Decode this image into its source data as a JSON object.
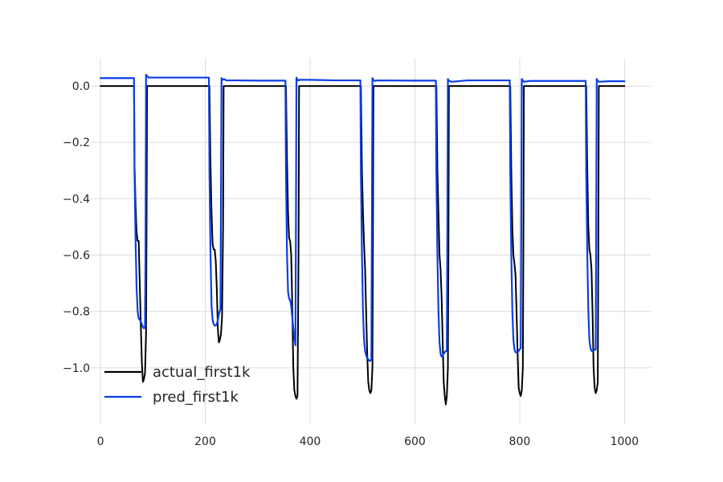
{
  "chart_data": {
    "type": "line",
    "title": "",
    "xlabel": "",
    "ylabel": "",
    "xlim": [
      -20,
      1050
    ],
    "ylim": [
      -1.2,
      0.1
    ],
    "grid": true,
    "legend_position": "lower-left",
    "x_ticks": [
      {
        "value": 0,
        "label": "0"
      },
      {
        "value": 200,
        "label": "200"
      },
      {
        "value": 400,
        "label": "400"
      },
      {
        "value": 600,
        "label": "600"
      },
      {
        "value": 800,
        "label": "800"
      },
      {
        "value": 1000,
        "label": "1000"
      }
    ],
    "y_ticks": [
      {
        "value": 0.0,
        "label": "0.0"
      },
      {
        "value": -0.2,
        "label": "−0.2"
      },
      {
        "value": -0.4,
        "label": "−0.4"
      },
      {
        "value": -0.6,
        "label": "−0.6"
      },
      {
        "value": -0.8,
        "label": "−0.8"
      },
      {
        "value": -1.0,
        "label": "−1.0"
      }
    ],
    "series": [
      {
        "name": "actual_first1k",
        "color": "#000000",
        "points": [
          [
            0,
            0.0
          ],
          [
            64,
            0.0
          ],
          [
            65,
            -0.28
          ],
          [
            67,
            -0.42
          ],
          [
            69,
            -0.52
          ],
          [
            71,
            -0.55
          ],
          [
            73,
            -0.55
          ],
          [
            75,
            -0.7
          ],
          [
            77,
            -0.85
          ],
          [
            79,
            -0.98
          ],
          [
            81,
            -1.05
          ],
          [
            83,
            -1.04
          ],
          [
            85,
            -1.02
          ],
          [
            87,
            -0.88
          ],
          [
            88,
            -0.5
          ],
          [
            89,
            0.0
          ],
          [
            208,
            0.0
          ],
          [
            210,
            -0.28
          ],
          [
            212,
            -0.45
          ],
          [
            214,
            -0.56
          ],
          [
            216,
            -0.58
          ],
          [
            218,
            -0.58
          ],
          [
            220,
            -0.62
          ],
          [
            222,
            -0.72
          ],
          [
            224,
            -0.86
          ],
          [
            226,
            -0.91
          ],
          [
            228,
            -0.9
          ],
          [
            230,
            -0.88
          ],
          [
            232,
            -0.82
          ],
          [
            234,
            -0.5
          ],
          [
            235,
            0.0
          ],
          [
            354,
            0.0
          ],
          [
            356,
            -0.27
          ],
          [
            358,
            -0.45
          ],
          [
            360,
            -0.54
          ],
          [
            362,
            -0.55
          ],
          [
            364,
            -0.6
          ],
          [
            366,
            -0.78
          ],
          [
            368,
            -1.0
          ],
          [
            370,
            -1.08
          ],
          [
            372,
            -1.1
          ],
          [
            374,
            -1.11
          ],
          [
            376,
            -1.1
          ],
          [
            378,
            -0.6
          ],
          [
            379,
            0.0
          ],
          [
            497,
            0.0
          ],
          [
            499,
            -0.3
          ],
          [
            501,
            -0.45
          ],
          [
            503,
            -0.56
          ],
          [
            505,
            -0.65
          ],
          [
            507,
            -0.8
          ],
          [
            509,
            -0.95
          ],
          [
            511,
            -1.05
          ],
          [
            513,
            -1.08
          ],
          [
            515,
            -1.09
          ],
          [
            517,
            -1.08
          ],
          [
            519,
            -1.0
          ],
          [
            520,
            -0.5
          ],
          [
            521,
            0.0
          ],
          [
            641,
            0.0
          ],
          [
            643,
            -0.3
          ],
          [
            645,
            -0.45
          ],
          [
            647,
            -0.6
          ],
          [
            649,
            -0.65
          ],
          [
            651,
            -0.75
          ],
          [
            653,
            -0.9
          ],
          [
            655,
            -1.05
          ],
          [
            657,
            -1.1
          ],
          [
            659,
            -1.13
          ],
          [
            661,
            -1.1
          ],
          [
            663,
            -1.0
          ],
          [
            664,
            -0.6
          ],
          [
            665,
            0.0
          ],
          [
            782,
            0.0
          ],
          [
            784,
            -0.3
          ],
          [
            786,
            -0.5
          ],
          [
            788,
            -0.6
          ],
          [
            790,
            -0.63
          ],
          [
            792,
            -0.67
          ],
          [
            794,
            -0.8
          ],
          [
            796,
            -0.95
          ],
          [
            798,
            -1.07
          ],
          [
            800,
            -1.09
          ],
          [
            802,
            -1.1
          ],
          [
            804,
            -1.08
          ],
          [
            806,
            -1.0
          ],
          [
            807,
            -0.6
          ],
          [
            808,
            0.0
          ],
          [
            927,
            0.0
          ],
          [
            929,
            -0.3
          ],
          [
            931,
            -0.5
          ],
          [
            933,
            -0.58
          ],
          [
            935,
            -0.6
          ],
          [
            937,
            -0.65
          ],
          [
            939,
            -0.8
          ],
          [
            941,
            -1.0
          ],
          [
            943,
            -1.07
          ],
          [
            945,
            -1.09
          ],
          [
            947,
            -1.08
          ],
          [
            949,
            -1.05
          ],
          [
            950,
            -0.6
          ],
          [
            951,
            0.0
          ],
          [
            1000,
            0.0
          ]
        ]
      },
      {
        "name": "pred_first1k",
        "color": "#0A3FE8",
        "points": [
          [
            0,
            0.028
          ],
          [
            64,
            0.028
          ],
          [
            65,
            -0.3
          ],
          [
            67,
            -0.55
          ],
          [
            69,
            -0.72
          ],
          [
            71,
            -0.8
          ],
          [
            73,
            -0.825
          ],
          [
            75,
            -0.83
          ],
          [
            77,
            -0.835
          ],
          [
            79,
            -0.845
          ],
          [
            81,
            -0.855
          ],
          [
            83,
            -0.86
          ],
          [
            85,
            -0.855
          ],
          [
            86,
            -0.6
          ],
          [
            87,
            0.04
          ],
          [
            89,
            0.035
          ],
          [
            92,
            0.03
          ],
          [
            100,
            0.03
          ],
          [
            150,
            0.03
          ],
          [
            207,
            0.03
          ],
          [
            208,
            -0.3
          ],
          [
            210,
            -0.6
          ],
          [
            212,
            -0.78
          ],
          [
            214,
            -0.83
          ],
          [
            216,
            -0.845
          ],
          [
            218,
            -0.85
          ],
          [
            220,
            -0.85
          ],
          [
            222,
            -0.845
          ],
          [
            224,
            -0.83
          ],
          [
            226,
            -0.81
          ],
          [
            229,
            -0.79
          ],
          [
            230,
            -0.4
          ],
          [
            231,
            0.028
          ],
          [
            233,
            0.022
          ],
          [
            236,
            0.025
          ],
          [
            240,
            0.02
          ],
          [
            260,
            0.02
          ],
          [
            300,
            0.019
          ],
          [
            353,
            0.019
          ],
          [
            354,
            -0.3
          ],
          [
            356,
            -0.6
          ],
          [
            358,
            -0.73
          ],
          [
            360,
            -0.755
          ],
          [
            362,
            -0.76
          ],
          [
            364,
            -0.78
          ],
          [
            366,
            -0.82
          ],
          [
            368,
            -0.86
          ],
          [
            370,
            -0.89
          ],
          [
            372,
            -0.92
          ],
          [
            373,
            -0.5
          ],
          [
            374,
            0.03
          ],
          [
            376,
            0.022
          ],
          [
            378,
            0.02
          ],
          [
            380,
            0.022
          ],
          [
            400,
            0.022
          ],
          [
            450,
            0.02
          ],
          [
            496,
            0.02
          ],
          [
            497,
            -0.3
          ],
          [
            499,
            -0.6
          ],
          [
            501,
            -0.8
          ],
          [
            503,
            -0.9
          ],
          [
            505,
            -0.94
          ],
          [
            507,
            -0.955
          ],
          [
            509,
            -0.965
          ],
          [
            511,
            -0.97
          ],
          [
            513,
            -0.975
          ],
          [
            515,
            -0.975
          ],
          [
            517,
            -0.97
          ],
          [
            518,
            -0.5
          ],
          [
            519,
            0.028
          ],
          [
            521,
            0.022
          ],
          [
            523,
            0.018
          ],
          [
            530,
            0.02
          ],
          [
            600,
            0.019
          ],
          [
            640,
            0.019
          ],
          [
            641,
            -0.3
          ],
          [
            643,
            -0.6
          ],
          [
            645,
            -0.8
          ],
          [
            647,
            -0.91
          ],
          [
            649,
            -0.95
          ],
          [
            651,
            -0.96
          ],
          [
            653,
            -0.958
          ],
          [
            655,
            -0.95
          ],
          [
            657,
            -0.945
          ],
          [
            659,
            -0.94
          ],
          [
            661,
            -0.94
          ],
          [
            662,
            -0.5
          ],
          [
            663,
            0.025
          ],
          [
            665,
            0.018
          ],
          [
            670,
            0.015
          ],
          [
            700,
            0.02
          ],
          [
            781,
            0.02
          ],
          [
            782,
            -0.3
          ],
          [
            784,
            -0.6
          ],
          [
            786,
            -0.8
          ],
          [
            788,
            -0.9
          ],
          [
            790,
            -0.935
          ],
          [
            792,
            -0.945
          ],
          [
            794,
            -0.945
          ],
          [
            796,
            -0.945
          ],
          [
            798,
            -0.94
          ],
          [
            800,
            -0.935
          ],
          [
            802,
            -0.93
          ],
          [
            803,
            -0.5
          ],
          [
            804,
            0.025
          ],
          [
            806,
            0.02
          ],
          [
            808,
            0.015
          ],
          [
            820,
            0.018
          ],
          [
            900,
            0.018
          ],
          [
            926,
            0.018
          ],
          [
            927,
            -0.3
          ],
          [
            929,
            -0.6
          ],
          [
            931,
            -0.8
          ],
          [
            933,
            -0.9
          ],
          [
            935,
            -0.93
          ],
          [
            937,
            -0.94
          ],
          [
            939,
            -0.94
          ],
          [
            941,
            -0.94
          ],
          [
            943,
            -0.935
          ],
          [
            945,
            -0.935
          ],
          [
            946,
            -0.5
          ],
          [
            947,
            0.025
          ],
          [
            949,
            0.018
          ],
          [
            952,
            0.015
          ],
          [
            970,
            0.017
          ],
          [
            1000,
            0.017
          ]
        ]
      }
    ]
  }
}
